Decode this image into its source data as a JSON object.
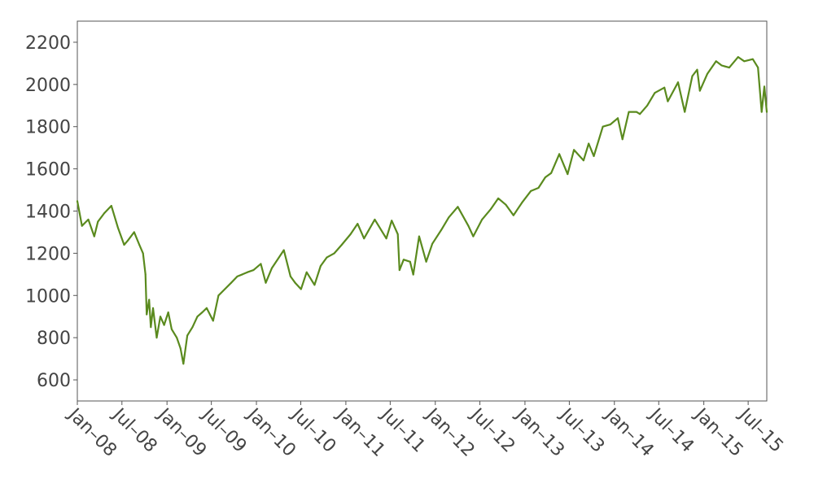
{
  "chart_data": {
    "type": "line",
    "title": "",
    "xlabel": "",
    "ylabel": "",
    "grid": false,
    "colors": {
      "series": "#5a8a1e",
      "axis": "#555555",
      "text": "#444444"
    },
    "xlim": [
      "2008-01-01",
      "2015-09-15"
    ],
    "ylim": [
      500,
      2300
    ],
    "x_ticks": [
      {
        "date": "2008-01-01",
        "label": "Jan–08"
      },
      {
        "date": "2008-07-01",
        "label": "Jul–08"
      },
      {
        "date": "2009-01-01",
        "label": "Jan–09"
      },
      {
        "date": "2009-07-01",
        "label": "Jul–09"
      },
      {
        "date": "2010-01-01",
        "label": "Jan–10"
      },
      {
        "date": "2010-07-01",
        "label": "Jul–10"
      },
      {
        "date": "2011-01-01",
        "label": "Jan–11"
      },
      {
        "date": "2011-07-01",
        "label": "Jul–11"
      },
      {
        "date": "2012-01-01",
        "label": "Jan–12"
      },
      {
        "date": "2012-07-01",
        "label": "Jul–12"
      },
      {
        "date": "2013-01-01",
        "label": "Jan–13"
      },
      {
        "date": "2013-07-01",
        "label": "Jul–13"
      },
      {
        "date": "2014-01-01",
        "label": "Jan–14"
      },
      {
        "date": "2014-07-01",
        "label": "Jul–14"
      },
      {
        "date": "2015-01-01",
        "label": "Jan–15"
      },
      {
        "date": "2015-07-01",
        "label": "Jul–15"
      }
    ],
    "y_ticks": [
      600,
      800,
      1000,
      1200,
      1400,
      1600,
      1800,
      2000,
      2200
    ],
    "series": [
      {
        "x": [
          "2008-01-01",
          "2008-01-20",
          "2008-02-15",
          "2008-03-10",
          "2008-03-25",
          "2008-04-20",
          "2008-05-19",
          "2008-06-15",
          "2008-07-10",
          "2008-07-25",
          "2008-08-20",
          "2008-09-10",
          "2008-09-25",
          "2008-10-05",
          "2008-10-10",
          "2008-10-20",
          "2008-10-27",
          "2008-11-05",
          "2008-11-20",
          "2008-12-05",
          "2008-12-20",
          "2009-01-06",
          "2009-01-20",
          "2009-02-10",
          "2009-02-25",
          "2009-03-09",
          "2009-03-25",
          "2009-04-15",
          "2009-05-05",
          "2009-05-25",
          "2009-06-12",
          "2009-07-08",
          "2009-07-30",
          "2009-08-25",
          "2009-09-20",
          "2009-10-15",
          "2009-11-05",
          "2009-11-25",
          "2009-12-20",
          "2010-01-19",
          "2010-02-08",
          "2010-03-05",
          "2010-04-23",
          "2010-05-20",
          "2010-06-08",
          "2010-07-02",
          "2010-07-25",
          "2010-08-26",
          "2010-09-20",
          "2010-10-15",
          "2010-11-15",
          "2010-12-15",
          "2011-01-20",
          "2011-02-18",
          "2011-03-16",
          "2011-04-29",
          "2011-06-15",
          "2011-07-07",
          "2011-08-01",
          "2011-08-08",
          "2011-08-25",
          "2011-09-20",
          "2011-10-03",
          "2011-10-27",
          "2011-11-25",
          "2011-12-20",
          "2012-01-25",
          "2012-02-25",
          "2012-04-02",
          "2012-05-15",
          "2012-06-04",
          "2012-07-10",
          "2012-08-15",
          "2012-09-14",
          "2012-10-15",
          "2012-11-15",
          "2012-12-20",
          "2013-01-25",
          "2013-02-25",
          "2013-03-25",
          "2013-04-18",
          "2013-05-21",
          "2013-06-24",
          "2013-07-20",
          "2013-08-28",
          "2013-09-18",
          "2013-10-09",
          "2013-11-15",
          "2013-12-15",
          "2014-01-15",
          "2014-02-03",
          "2014-03-01",
          "2014-04-01",
          "2014-04-15",
          "2014-05-15",
          "2014-06-15",
          "2014-07-24",
          "2014-08-07",
          "2014-09-18",
          "2014-10-15",
          "2014-11-15",
          "2014-12-05",
          "2014-12-16",
          "2015-01-15",
          "2015-02-20",
          "2015-03-15",
          "2015-04-15",
          "2015-05-21",
          "2015-06-15",
          "2015-07-20",
          "2015-08-10",
          "2015-08-25",
          "2015-09-05",
          "2015-09-15"
        ],
        "values": [
          1447,
          1330,
          1360,
          1280,
          1350,
          1390,
          1425,
          1320,
          1240,
          1260,
          1300,
          1240,
          1200,
          1100,
          910,
          980,
          850,
          940,
          800,
          900,
          860,
          920,
          840,
          800,
          750,
          676,
          810,
          850,
          900,
          920,
          940,
          880,
          1000,
          1030,
          1060,
          1090,
          1100,
          1110,
          1120,
          1150,
          1060,
          1130,
          1215,
          1090,
          1060,
          1030,
          1110,
          1050,
          1140,
          1180,
          1200,
          1240,
          1290,
          1340,
          1270,
          1360,
          1270,
          1355,
          1290,
          1120,
          1170,
          1160,
          1099,
          1280,
          1160,
          1245,
          1310,
          1370,
          1420,
          1330,
          1280,
          1360,
          1410,
          1460,
          1430,
          1380,
          1440,
          1495,
          1510,
          1560,
          1580,
          1670,
          1575,
          1690,
          1640,
          1720,
          1660,
          1800,
          1810,
          1840,
          1740,
          1870,
          1870,
          1860,
          1900,
          1960,
          1985,
          1920,
          2010,
          1870,
          2040,
          2070,
          1970,
          2050,
          2110,
          2090,
          2080,
          2130,
          2110,
          2120,
          2080,
          1870,
          1990,
          1870
        ]
      }
    ]
  }
}
